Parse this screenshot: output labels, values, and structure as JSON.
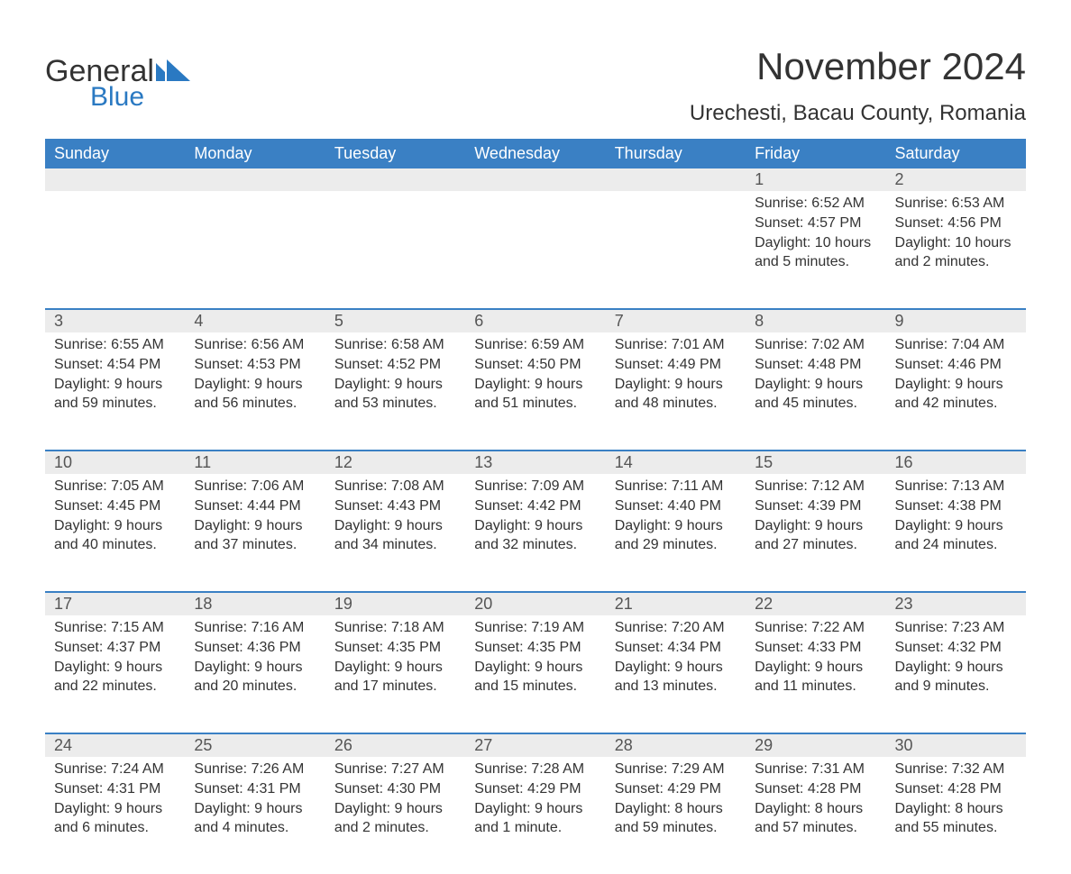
{
  "logo": {
    "text1": "General",
    "text2": "Blue",
    "color_text": "#333333",
    "color_blue": "#2a79c2"
  },
  "title": "November 2024",
  "location": "Urechesti, Bacau County, Romania",
  "colors": {
    "header_bg": "#3a80c4",
    "header_text": "#ffffff",
    "daynum_bg": "#ececec",
    "body_text": "#333333",
    "border": "#3a80c4",
    "background": "#ffffff"
  },
  "typography": {
    "title_fontsize": 42,
    "location_fontsize": 24,
    "header_fontsize": 18,
    "body_fontsize": 16
  },
  "weekdays": [
    "Sunday",
    "Monday",
    "Tuesday",
    "Wednesday",
    "Thursday",
    "Friday",
    "Saturday"
  ],
  "weeks": [
    [
      null,
      null,
      null,
      null,
      null,
      {
        "n": "1",
        "sr": "Sunrise: 6:52 AM",
        "ss": "Sunset: 4:57 PM",
        "dl1": "Daylight: 10 hours",
        "dl2": "and 5 minutes."
      },
      {
        "n": "2",
        "sr": "Sunrise: 6:53 AM",
        "ss": "Sunset: 4:56 PM",
        "dl1": "Daylight: 10 hours",
        "dl2": "and 2 minutes."
      }
    ],
    [
      {
        "n": "3",
        "sr": "Sunrise: 6:55 AM",
        "ss": "Sunset: 4:54 PM",
        "dl1": "Daylight: 9 hours",
        "dl2": "and 59 minutes."
      },
      {
        "n": "4",
        "sr": "Sunrise: 6:56 AM",
        "ss": "Sunset: 4:53 PM",
        "dl1": "Daylight: 9 hours",
        "dl2": "and 56 minutes."
      },
      {
        "n": "5",
        "sr": "Sunrise: 6:58 AM",
        "ss": "Sunset: 4:52 PM",
        "dl1": "Daylight: 9 hours",
        "dl2": "and 53 minutes."
      },
      {
        "n": "6",
        "sr": "Sunrise: 6:59 AM",
        "ss": "Sunset: 4:50 PM",
        "dl1": "Daylight: 9 hours",
        "dl2": "and 51 minutes."
      },
      {
        "n": "7",
        "sr": "Sunrise: 7:01 AM",
        "ss": "Sunset: 4:49 PM",
        "dl1": "Daylight: 9 hours",
        "dl2": "and 48 minutes."
      },
      {
        "n": "8",
        "sr": "Sunrise: 7:02 AM",
        "ss": "Sunset: 4:48 PM",
        "dl1": "Daylight: 9 hours",
        "dl2": "and 45 minutes."
      },
      {
        "n": "9",
        "sr": "Sunrise: 7:04 AM",
        "ss": "Sunset: 4:46 PM",
        "dl1": "Daylight: 9 hours",
        "dl2": "and 42 minutes."
      }
    ],
    [
      {
        "n": "10",
        "sr": "Sunrise: 7:05 AM",
        "ss": "Sunset: 4:45 PM",
        "dl1": "Daylight: 9 hours",
        "dl2": "and 40 minutes."
      },
      {
        "n": "11",
        "sr": "Sunrise: 7:06 AM",
        "ss": "Sunset: 4:44 PM",
        "dl1": "Daylight: 9 hours",
        "dl2": "and 37 minutes."
      },
      {
        "n": "12",
        "sr": "Sunrise: 7:08 AM",
        "ss": "Sunset: 4:43 PM",
        "dl1": "Daylight: 9 hours",
        "dl2": "and 34 minutes."
      },
      {
        "n": "13",
        "sr": "Sunrise: 7:09 AM",
        "ss": "Sunset: 4:42 PM",
        "dl1": "Daylight: 9 hours",
        "dl2": "and 32 minutes."
      },
      {
        "n": "14",
        "sr": "Sunrise: 7:11 AM",
        "ss": "Sunset: 4:40 PM",
        "dl1": "Daylight: 9 hours",
        "dl2": "and 29 minutes."
      },
      {
        "n": "15",
        "sr": "Sunrise: 7:12 AM",
        "ss": "Sunset: 4:39 PM",
        "dl1": "Daylight: 9 hours",
        "dl2": "and 27 minutes."
      },
      {
        "n": "16",
        "sr": "Sunrise: 7:13 AM",
        "ss": "Sunset: 4:38 PM",
        "dl1": "Daylight: 9 hours",
        "dl2": "and 24 minutes."
      }
    ],
    [
      {
        "n": "17",
        "sr": "Sunrise: 7:15 AM",
        "ss": "Sunset: 4:37 PM",
        "dl1": "Daylight: 9 hours",
        "dl2": "and 22 minutes."
      },
      {
        "n": "18",
        "sr": "Sunrise: 7:16 AM",
        "ss": "Sunset: 4:36 PM",
        "dl1": "Daylight: 9 hours",
        "dl2": "and 20 minutes."
      },
      {
        "n": "19",
        "sr": "Sunrise: 7:18 AM",
        "ss": "Sunset: 4:35 PM",
        "dl1": "Daylight: 9 hours",
        "dl2": "and 17 minutes."
      },
      {
        "n": "20",
        "sr": "Sunrise: 7:19 AM",
        "ss": "Sunset: 4:35 PM",
        "dl1": "Daylight: 9 hours",
        "dl2": "and 15 minutes."
      },
      {
        "n": "21",
        "sr": "Sunrise: 7:20 AM",
        "ss": "Sunset: 4:34 PM",
        "dl1": "Daylight: 9 hours",
        "dl2": "and 13 minutes."
      },
      {
        "n": "22",
        "sr": "Sunrise: 7:22 AM",
        "ss": "Sunset: 4:33 PM",
        "dl1": "Daylight: 9 hours",
        "dl2": "and 11 minutes."
      },
      {
        "n": "23",
        "sr": "Sunrise: 7:23 AM",
        "ss": "Sunset: 4:32 PM",
        "dl1": "Daylight: 9 hours",
        "dl2": "and 9 minutes."
      }
    ],
    [
      {
        "n": "24",
        "sr": "Sunrise: 7:24 AM",
        "ss": "Sunset: 4:31 PM",
        "dl1": "Daylight: 9 hours",
        "dl2": "and 6 minutes."
      },
      {
        "n": "25",
        "sr": "Sunrise: 7:26 AM",
        "ss": "Sunset: 4:31 PM",
        "dl1": "Daylight: 9 hours",
        "dl2": "and 4 minutes."
      },
      {
        "n": "26",
        "sr": "Sunrise: 7:27 AM",
        "ss": "Sunset: 4:30 PM",
        "dl1": "Daylight: 9 hours",
        "dl2": "and 2 minutes."
      },
      {
        "n": "27",
        "sr": "Sunrise: 7:28 AM",
        "ss": "Sunset: 4:29 PM",
        "dl1": "Daylight: 9 hours",
        "dl2": "and 1 minute."
      },
      {
        "n": "28",
        "sr": "Sunrise: 7:29 AM",
        "ss": "Sunset: 4:29 PM",
        "dl1": "Daylight: 8 hours",
        "dl2": "and 59 minutes."
      },
      {
        "n": "29",
        "sr": "Sunrise: 7:31 AM",
        "ss": "Sunset: 4:28 PM",
        "dl1": "Daylight: 8 hours",
        "dl2": "and 57 minutes."
      },
      {
        "n": "30",
        "sr": "Sunrise: 7:32 AM",
        "ss": "Sunset: 4:28 PM",
        "dl1": "Daylight: 8 hours",
        "dl2": "and 55 minutes."
      }
    ]
  ]
}
